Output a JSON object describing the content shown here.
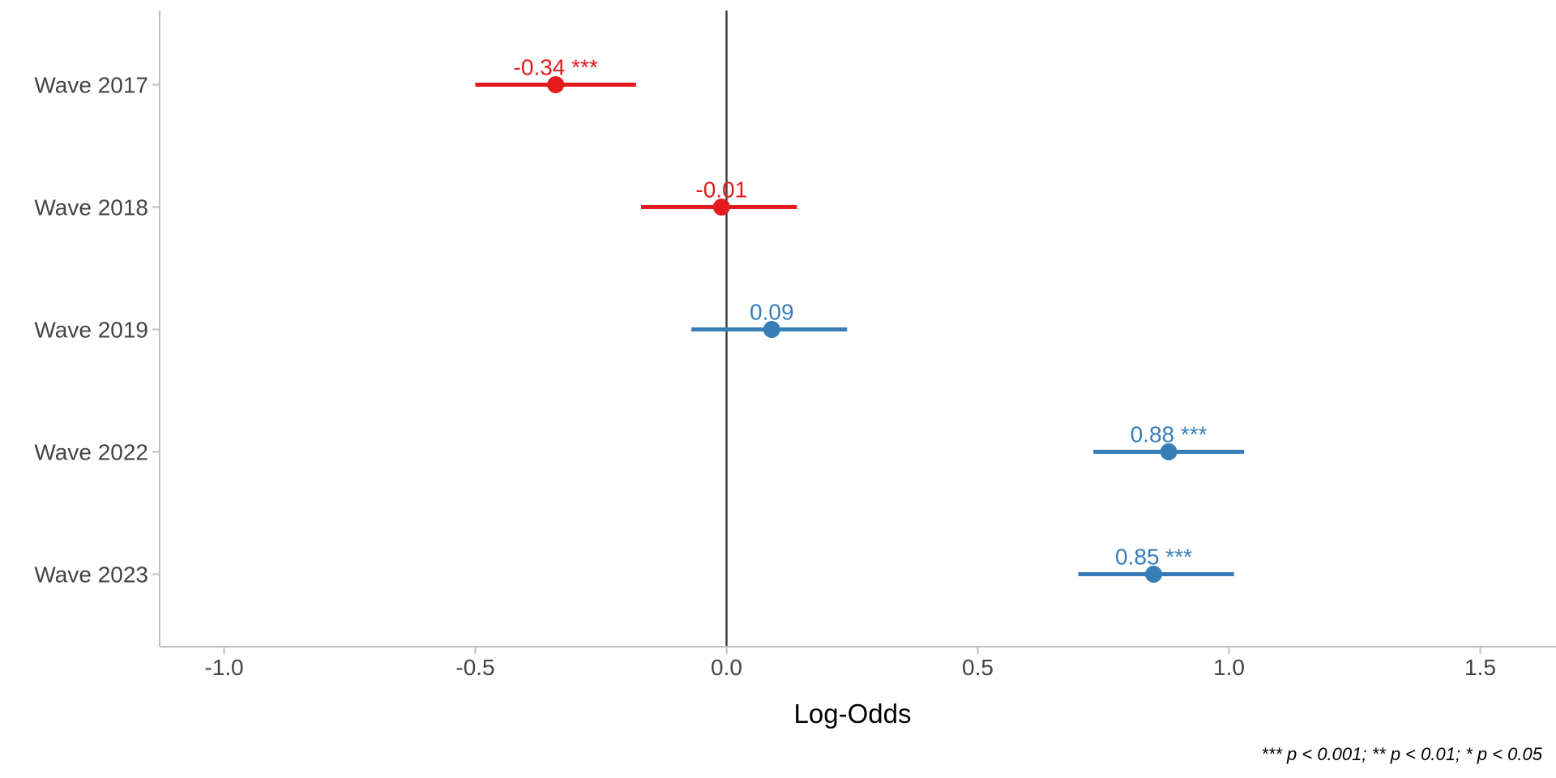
{
  "chart_data": {
    "type": "scatter",
    "variant": "forest-dot-whisker",
    "title": "",
    "xlabel": "Log-Odds",
    "ylabel": "",
    "footnote": "*** p < 0.001; ** p < 0.01; * p < 0.05",
    "categories": [
      "Wave 2017",
      "Wave 2018",
      "Wave 2019",
      "Wave 2022",
      "Wave 2023"
    ],
    "points": [
      {
        "category": "Wave 2017",
        "estimate": -0.34,
        "ci_low": -0.5,
        "ci_high": -0.18,
        "significance": "***",
        "display": "-0.34 ***",
        "color": "#E41A1C"
      },
      {
        "category": "Wave 2018",
        "estimate": -0.01,
        "ci_low": -0.17,
        "ci_high": 0.14,
        "significance": "",
        "display": "-0.01",
        "color": "#E41A1C"
      },
      {
        "category": "Wave 2019",
        "estimate": 0.09,
        "ci_low": -0.07,
        "ci_high": 0.24,
        "significance": "",
        "display": "0.09",
        "color": "#377EB8"
      },
      {
        "category": "Wave 2022",
        "estimate": 0.88,
        "ci_low": 0.73,
        "ci_high": 1.03,
        "significance": "***",
        "display": "0.88 ***",
        "color": "#377EB8"
      },
      {
        "category": "Wave 2023",
        "estimate": 0.85,
        "ci_low": 0.7,
        "ci_high": 1.01,
        "significance": "***",
        "display": "0.85 ***",
        "color": "#377EB8"
      }
    ],
    "x_ticks": [
      -1.0,
      -0.5,
      0.0,
      0.5,
      1.0,
      1.5
    ],
    "x_tick_labels": [
      "-1.0",
      "-0.5",
      "0.0",
      "0.5",
      "1.0",
      "1.5"
    ],
    "xlim": [
      -1.13,
      1.65
    ],
    "zero_reference_line": 0,
    "grid": false,
    "legend": false,
    "colors": {
      "negative_series": "#E41A1C",
      "positive_series": "#377EB8",
      "axis_line": "#BFBFBF",
      "axis_text": "#444444",
      "zero_line": "#3C3C3C",
      "label_text": "#000000"
    }
  }
}
